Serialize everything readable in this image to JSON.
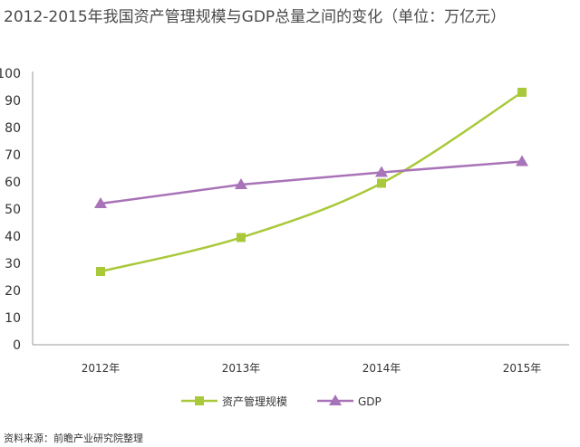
{
  "chart_data": {
    "type": "line",
    "title": "2012-2015年我国资产管理规模与GDP总量之间的变化（单位：万亿元）",
    "categories": [
      "2012年",
      "2013年",
      "2014年",
      "2015年"
    ],
    "series": [
      {
        "name": "资产管理规模",
        "values": [
          27,
          39.5,
          59.5,
          93
        ],
        "color": "#a9c93a",
        "marker": "square"
      },
      {
        "name": "GDP",
        "values": [
          52,
          59,
          63.5,
          67.5
        ],
        "color": "#a873b8",
        "marker": "triangle"
      }
    ],
    "y_ticks": [
      0,
      10,
      20,
      30,
      40,
      50,
      60,
      70,
      80,
      90,
      100
    ],
    "ylim": [
      0,
      100
    ],
    "xlabel": "",
    "ylabel": "",
    "grid": false,
    "legend_position": "bottom",
    "source": "资料来源：前瞻产业研究院整理"
  }
}
